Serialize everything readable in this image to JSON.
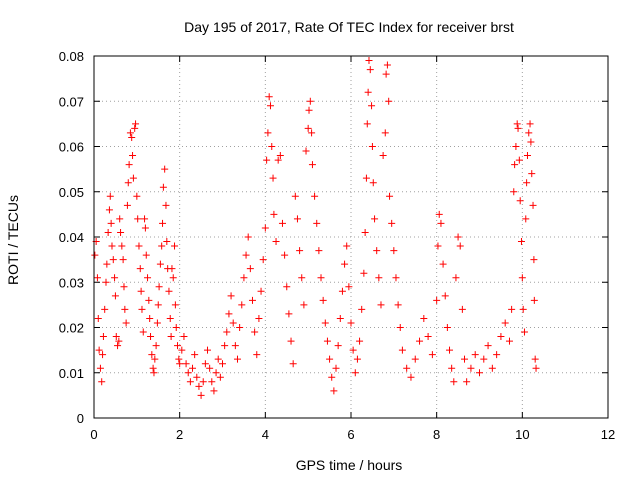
{
  "chart_data": {
    "type": "scatter",
    "title": "Day 195 of 2017, Rate Of TEC Index for receiver brst",
    "xlabel": "GPS time / hours",
    "ylabel": "ROTI / TECUs",
    "xlim": [
      0,
      12
    ],
    "ylim": [
      0,
      0.08
    ],
    "x_ticks": [
      0,
      2,
      4,
      6,
      8,
      10,
      12
    ],
    "y_ticks": [
      0,
      0.01,
      0.02,
      0.03,
      0.04,
      0.05,
      0.06,
      0.07,
      0.08
    ],
    "x_tick_labels": [
      "0",
      "2",
      "4",
      "6",
      "8",
      "10",
      "12"
    ],
    "y_tick_labels": [
      "0",
      "0.01",
      "0.02",
      "0.03",
      "0.04",
      "0.05",
      "0.06",
      "0.07",
      "0.08"
    ],
    "grid": true,
    "marker": "+",
    "color": "#ff0000",
    "points": [
      [
        0.02,
        0.036
      ],
      [
        0.05,
        0.039
      ],
      [
        0.08,
        0.031
      ],
      [
        0.1,
        0.022
      ],
      [
        0.12,
        0.015
      ],
      [
        0.15,
        0.011
      ],
      [
        0.18,
        0.008
      ],
      [
        0.2,
        0.014
      ],
      [
        0.22,
        0.018
      ],
      [
        0.25,
        0.024
      ],
      [
        0.28,
        0.03
      ],
      [
        0.3,
        0.034
      ],
      [
        0.33,
        0.041
      ],
      [
        0.36,
        0.046
      ],
      [
        0.38,
        0.049
      ],
      [
        0.4,
        0.043
      ],
      [
        0.42,
        0.038
      ],
      [
        0.45,
        0.035
      ],
      [
        0.48,
        0.031
      ],
      [
        0.5,
        0.027
      ],
      [
        0.52,
        0.018
      ],
      [
        0.55,
        0.016
      ],
      [
        0.58,
        0.017
      ],
      [
        0.6,
        0.044
      ],
      [
        0.62,
        0.041
      ],
      [
        0.65,
        0.038
      ],
      [
        0.68,
        0.035
      ],
      [
        0.7,
        0.029
      ],
      [
        0.72,
        0.024
      ],
      [
        0.75,
        0.021
      ],
      [
        0.78,
        0.047
      ],
      [
        0.8,
        0.052
      ],
      [
        0.82,
        0.056
      ],
      [
        0.85,
        0.063
      ],
      [
        0.88,
        0.062
      ],
      [
        0.9,
        0.058
      ],
      [
        0.92,
        0.053
      ],
      [
        0.95,
        0.064
      ],
      [
        0.97,
        0.065
      ],
      [
        1.0,
        0.049
      ],
      [
        1.02,
        0.044
      ],
      [
        1.05,
        0.038
      ],
      [
        1.08,
        0.033
      ],
      [
        1.1,
        0.028
      ],
      [
        1.12,
        0.024
      ],
      [
        1.15,
        0.019
      ],
      [
        1.18,
        0.044
      ],
      [
        1.2,
        0.042
      ],
      [
        1.22,
        0.036
      ],
      [
        1.25,
        0.031
      ],
      [
        1.28,
        0.026
      ],
      [
        1.3,
        0.022
      ],
      [
        1.32,
        0.018
      ],
      [
        1.35,
        0.014
      ],
      [
        1.38,
        0.011
      ],
      [
        1.4,
        0.01
      ],
      [
        1.42,
        0.013
      ],
      [
        1.45,
        0.016
      ],
      [
        1.48,
        0.021
      ],
      [
        1.5,
        0.025
      ],
      [
        1.52,
        0.029
      ],
      [
        1.55,
        0.034
      ],
      [
        1.58,
        0.038
      ],
      [
        1.6,
        0.043
      ],
      [
        1.62,
        0.051
      ],
      [
        1.65,
        0.055
      ],
      [
        1.68,
        0.047
      ],
      [
        1.7,
        0.039
      ],
      [
        1.72,
        0.033
      ],
      [
        1.75,
        0.028
      ],
      [
        1.78,
        0.022
      ],
      [
        1.8,
        0.018
      ],
      [
        1.82,
        0.033
      ],
      [
        1.85,
        0.031
      ],
      [
        1.88,
        0.038
      ],
      [
        1.9,
        0.025
      ],
      [
        1.92,
        0.02
      ],
      [
        1.95,
        0.016
      ],
      [
        1.98,
        0.013
      ],
      [
        2.0,
        0.012
      ],
      [
        2.05,
        0.015
      ],
      [
        2.1,
        0.018
      ],
      [
        2.15,
        0.012
      ],
      [
        2.2,
        0.01
      ],
      [
        2.25,
        0.008
      ],
      [
        2.3,
        0.011
      ],
      [
        2.35,
        0.014
      ],
      [
        2.4,
        0.009
      ],
      [
        2.45,
        0.007
      ],
      [
        2.5,
        0.005
      ],
      [
        2.55,
        0.008
      ],
      [
        2.6,
        0.012
      ],
      [
        2.65,
        0.015
      ],
      [
        2.7,
        0.011
      ],
      [
        2.75,
        0.008
      ],
      [
        2.8,
        0.006
      ],
      [
        2.85,
        0.01
      ],
      [
        2.9,
        0.013
      ],
      [
        2.95,
        0.009
      ],
      [
        3.0,
        0.012
      ],
      [
        3.05,
        0.016
      ],
      [
        3.1,
        0.019
      ],
      [
        3.15,
        0.023
      ],
      [
        3.2,
        0.027
      ],
      [
        3.25,
        0.021
      ],
      [
        3.3,
        0.016
      ],
      [
        3.35,
        0.013
      ],
      [
        3.4,
        0.02
      ],
      [
        3.45,
        0.025
      ],
      [
        3.5,
        0.031
      ],
      [
        3.55,
        0.036
      ],
      [
        3.6,
        0.04
      ],
      [
        3.65,
        0.033
      ],
      [
        3.7,
        0.026
      ],
      [
        3.75,
        0.019
      ],
      [
        3.8,
        0.014
      ],
      [
        3.85,
        0.022
      ],
      [
        3.9,
        0.028
      ],
      [
        3.95,
        0.035
      ],
      [
        4.0,
        0.042
      ],
      [
        4.03,
        0.057
      ],
      [
        4.06,
        0.063
      ],
      [
        4.09,
        0.071
      ],
      [
        4.12,
        0.069
      ],
      [
        4.15,
        0.06
      ],
      [
        4.18,
        0.053
      ],
      [
        4.2,
        0.045
      ],
      [
        4.25,
        0.039
      ],
      [
        4.3,
        0.057
      ],
      [
        4.35,
        0.058
      ],
      [
        4.4,
        0.043
      ],
      [
        4.45,
        0.036
      ],
      [
        4.5,
        0.029
      ],
      [
        4.55,
        0.023
      ],
      [
        4.6,
        0.017
      ],
      [
        4.65,
        0.012
      ],
      [
        4.7,
        0.049
      ],
      [
        4.75,
        0.044
      ],
      [
        4.8,
        0.037
      ],
      [
        4.85,
        0.031
      ],
      [
        4.9,
        0.025
      ],
      [
        4.95,
        0.059
      ],
      [
        5.0,
        0.064
      ],
      [
        5.02,
        0.068
      ],
      [
        5.05,
        0.07
      ],
      [
        5.08,
        0.063
      ],
      [
        5.1,
        0.056
      ],
      [
        5.15,
        0.049
      ],
      [
        5.2,
        0.043
      ],
      [
        5.25,
        0.037
      ],
      [
        5.3,
        0.031
      ],
      [
        5.35,
        0.026
      ],
      [
        5.4,
        0.021
      ],
      [
        5.45,
        0.017
      ],
      [
        5.5,
        0.013
      ],
      [
        5.55,
        0.009
      ],
      [
        5.6,
        0.006
      ],
      [
        5.65,
        0.011
      ],
      [
        5.7,
        0.016
      ],
      [
        5.75,
        0.022
      ],
      [
        5.8,
        0.028
      ],
      [
        5.85,
        0.034
      ],
      [
        5.9,
        0.038
      ],
      [
        5.95,
        0.029
      ],
      [
        6.0,
        0.021
      ],
      [
        6.05,
        0.015
      ],
      [
        6.1,
        0.01
      ],
      [
        6.15,
        0.013
      ],
      [
        6.2,
        0.017
      ],
      [
        6.25,
        0.024
      ],
      [
        6.3,
        0.032
      ],
      [
        6.33,
        0.041
      ],
      [
        6.36,
        0.053
      ],
      [
        6.38,
        0.065
      ],
      [
        6.4,
        0.072
      ],
      [
        6.42,
        0.079
      ],
      [
        6.45,
        0.077
      ],
      [
        6.48,
        0.069
      ],
      [
        6.5,
        0.06
      ],
      [
        6.52,
        0.052
      ],
      [
        6.55,
        0.044
      ],
      [
        6.6,
        0.037
      ],
      [
        6.65,
        0.031
      ],
      [
        6.7,
        0.025
      ],
      [
        6.75,
        0.058
      ],
      [
        6.8,
        0.063
      ],
      [
        6.82,
        0.076
      ],
      [
        6.85,
        0.078
      ],
      [
        6.88,
        0.07
      ],
      [
        6.9,
        0.049
      ],
      [
        6.95,
        0.043
      ],
      [
        7.0,
        0.037
      ],
      [
        7.05,
        0.031
      ],
      [
        7.1,
        0.025
      ],
      [
        7.15,
        0.02
      ],
      [
        7.2,
        0.015
      ],
      [
        7.3,
        0.011
      ],
      [
        7.4,
        0.009
      ],
      [
        7.5,
        0.013
      ],
      [
        7.6,
        0.017
      ],
      [
        7.7,
        0.022
      ],
      [
        7.8,
        0.018
      ],
      [
        7.9,
        0.014
      ],
      [
        8.0,
        0.026
      ],
      [
        8.03,
        0.038
      ],
      [
        8.06,
        0.045
      ],
      [
        8.1,
        0.043
      ],
      [
        8.15,
        0.034
      ],
      [
        8.2,
        0.027
      ],
      [
        8.25,
        0.02
      ],
      [
        8.3,
        0.015
      ],
      [
        8.35,
        0.011
      ],
      [
        8.4,
        0.008
      ],
      [
        8.45,
        0.031
      ],
      [
        8.5,
        0.04
      ],
      [
        8.55,
        0.038
      ],
      [
        8.6,
        0.024
      ],
      [
        8.65,
        0.013
      ],
      [
        8.7,
        0.008
      ],
      [
        8.8,
        0.011
      ],
      [
        8.9,
        0.014
      ],
      [
        9.0,
        0.01
      ],
      [
        9.1,
        0.013
      ],
      [
        9.2,
        0.016
      ],
      [
        9.3,
        0.011
      ],
      [
        9.4,
        0.014
      ],
      [
        9.5,
        0.018
      ],
      [
        9.6,
        0.021
      ],
      [
        9.7,
        0.017
      ],
      [
        9.75,
        0.024
      ],
      [
        9.8,
        0.05
      ],
      [
        9.82,
        0.056
      ],
      [
        9.85,
        0.06
      ],
      [
        9.88,
        0.065
      ],
      [
        9.9,
        0.064
      ],
      [
        9.93,
        0.057
      ],
      [
        9.95,
        0.048
      ],
      [
        9.98,
        0.039
      ],
      [
        10.0,
        0.031
      ],
      [
        10.02,
        0.024
      ],
      [
        10.05,
        0.019
      ],
      [
        10.08,
        0.044
      ],
      [
        10.1,
        0.052
      ],
      [
        10.12,
        0.058
      ],
      [
        10.15,
        0.063
      ],
      [
        10.18,
        0.065
      ],
      [
        10.2,
        0.061
      ],
      [
        10.22,
        0.054
      ],
      [
        10.25,
        0.047
      ],
      [
        10.27,
        0.035
      ],
      [
        10.28,
        0.026
      ],
      [
        10.3,
        0.013
      ],
      [
        10.32,
        0.011
      ]
    ]
  }
}
